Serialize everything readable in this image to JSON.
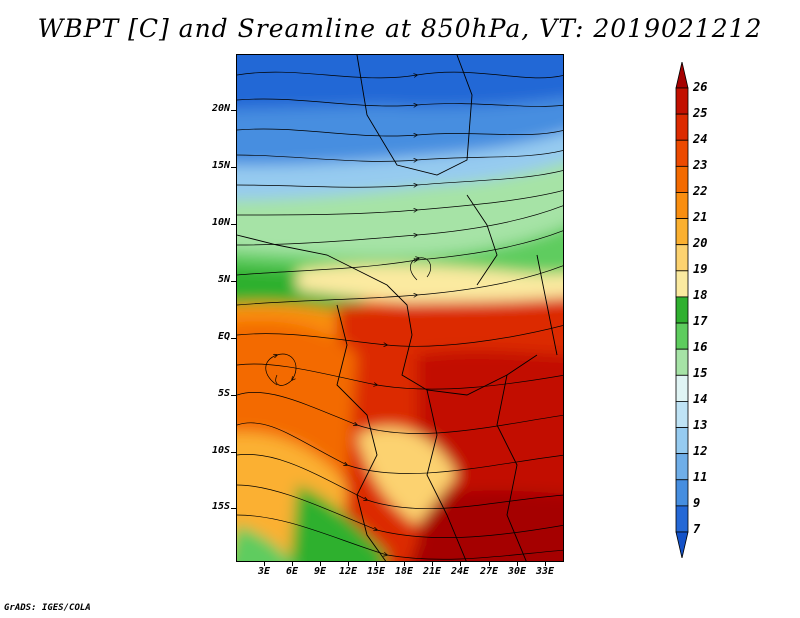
{
  "title": "WBPT [C] and Sreamline at 850hPa, VT: 2019021212",
  "credit": "GrADS: IGES/COLA",
  "map": {
    "field": "WBPT [C]",
    "overlay": "Streamline",
    "level": "850hPa",
    "valid_time": "2019021212",
    "lat_labels": [
      "20N",
      "15N",
      "10N",
      "5N",
      "EQ",
      "5S",
      "10S",
      "15S"
    ],
    "lon_labels": [
      "3E",
      "6E",
      "9E",
      "12E",
      "15E",
      "18E",
      "21E",
      "24E",
      "27E",
      "30E",
      "33E"
    ]
  },
  "colorbar": {
    "labels": [
      "26",
      "25",
      "24",
      "23",
      "22",
      "21",
      "20",
      "19",
      "18",
      "17",
      "16",
      "15",
      "14",
      "13",
      "12",
      "11",
      "9",
      "7"
    ],
    "colors": [
      "#a50000",
      "#c21000",
      "#dc2a00",
      "#ec4a00",
      "#f36a00",
      "#f98e10",
      "#fbb030",
      "#fcd270",
      "#fbeaa0",
      "#2fb02f",
      "#5ecc5e",
      "#a6e3a6",
      "#e0f4f4",
      "#bfe3f5",
      "#96cbf0",
      "#6faee8",
      "#468ee0",
      "#2468d6",
      "#1452c8"
    ]
  }
}
